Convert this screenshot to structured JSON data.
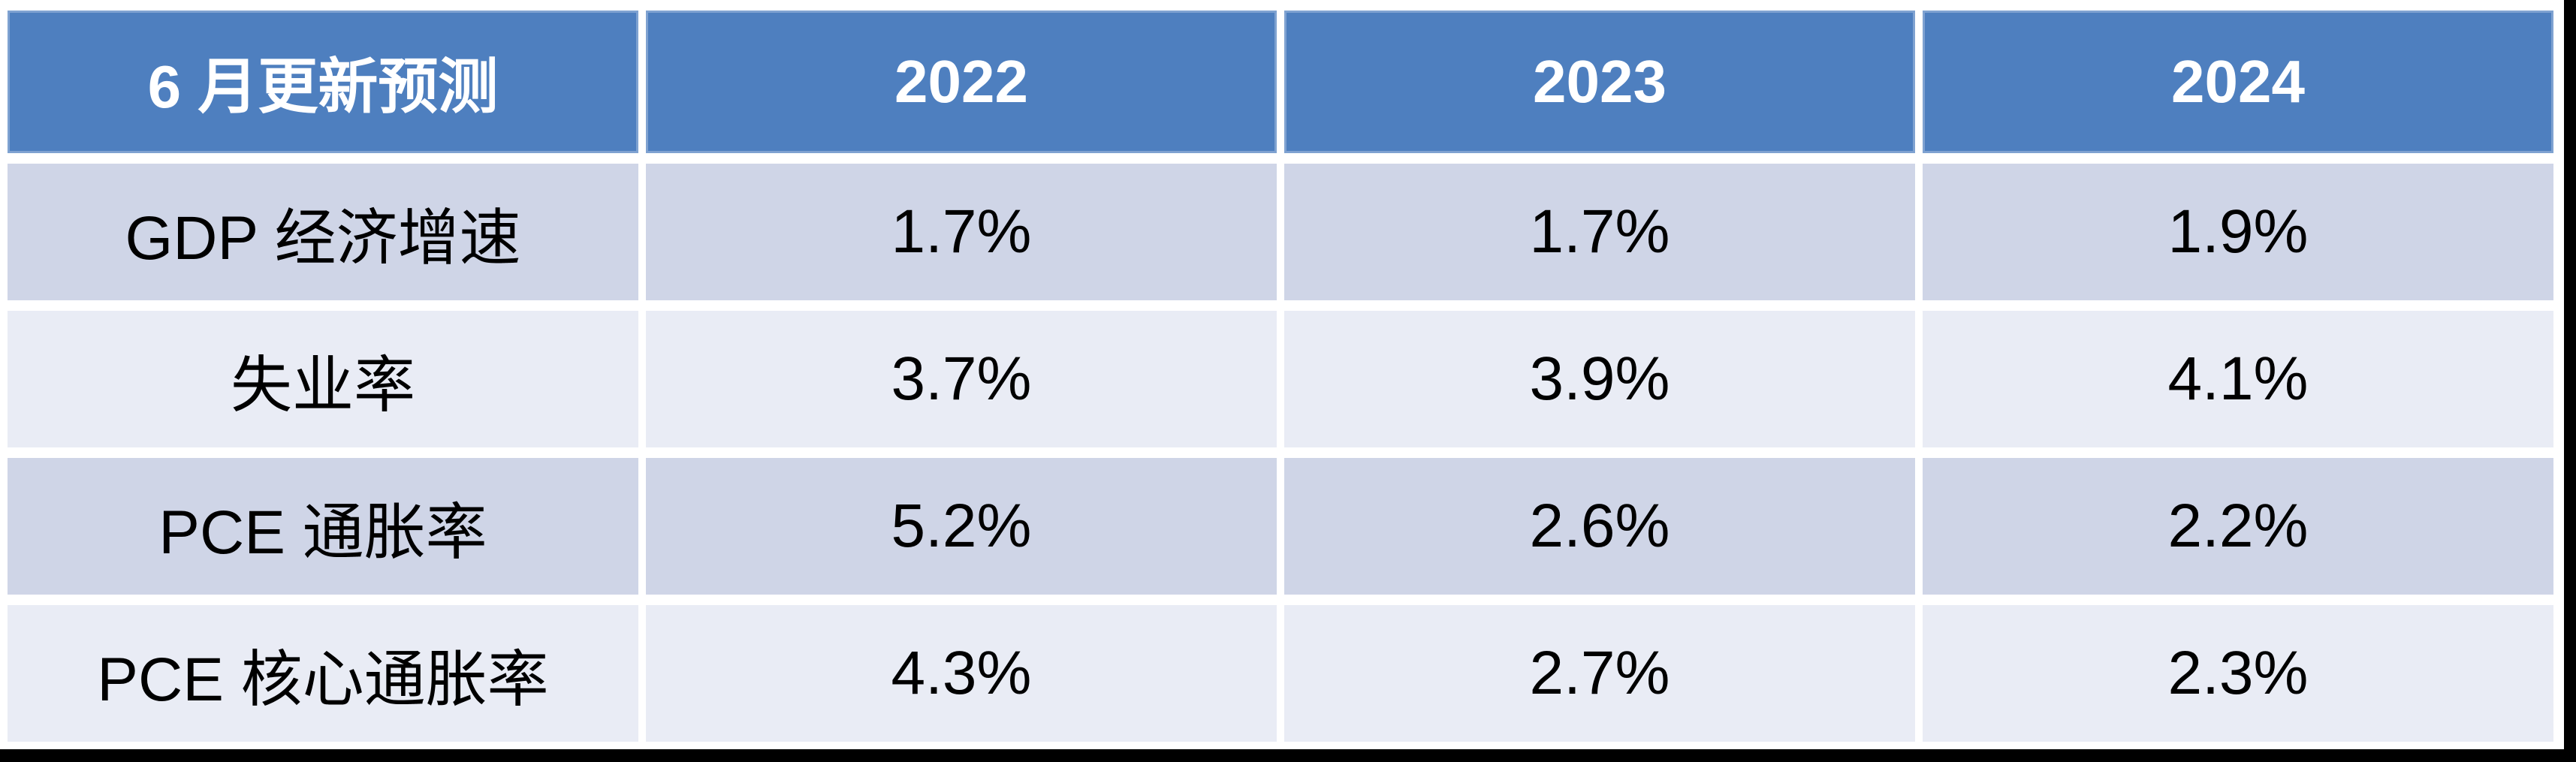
{
  "chart_data": {
    "type": "table",
    "title": "6 月更新预测",
    "header": [
      "6 月更新预测",
      "2022",
      "2023",
      "2024"
    ],
    "rows": [
      [
        "GDP 经济增速",
        "1.7%",
        "1.7%",
        "1.9%"
      ],
      [
        "失业率",
        "3.7%",
        "3.9%",
        "4.1%"
      ],
      [
        "PCE 通胀率",
        "5.2%",
        "2.6%",
        "2.2%"
      ],
      [
        "PCE 核心通胀率",
        "4.3%",
        "2.7%",
        "2.3%"
      ]
    ],
    "layout_hints": {
      "header_style": "solid blue band, white bold text",
      "row_banding": [
        "dark",
        "light",
        "dark",
        "light"
      ],
      "cell_alignment": "center",
      "gutters": "white gaps between all cells"
    }
  },
  "colors": {
    "header_bg": "#4e7fbf",
    "header_text": "#ffffff",
    "band_dark": "#cfd5e7",
    "band_light": "#e9ecf5",
    "body_text": "#000000",
    "gutter_white": "#ffffff",
    "frame_black": "#000000"
  }
}
